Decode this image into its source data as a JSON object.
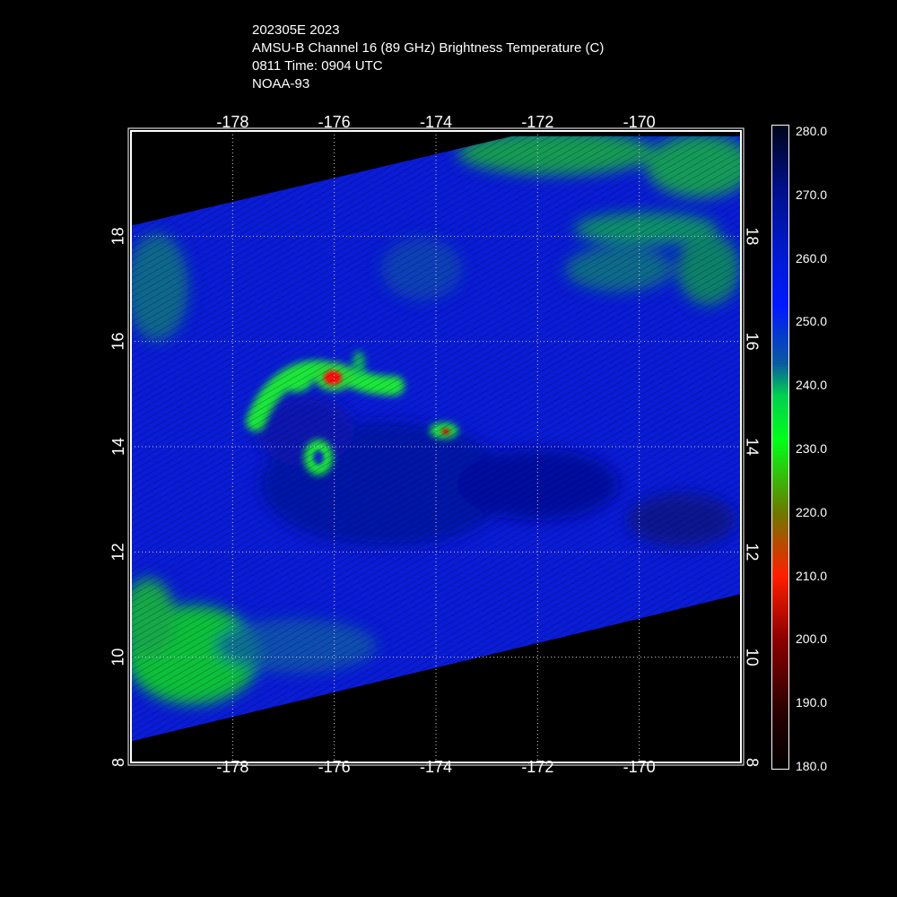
{
  "header": {
    "line1": "202305E 2023",
    "line2": "AMSU-B Channel 16 (89 GHz) Brightness Temperature (C)",
    "line3": "0811 Time: 0904 UTC",
    "line4": "NOAA-93"
  },
  "map": {
    "lon_range": [
      -180,
      -168
    ],
    "lat_range": [
      8,
      20
    ],
    "lon_ticks": [
      "-178",
      "-176",
      "-174",
      "-172",
      "-170"
    ],
    "lat_ticks": [
      "8",
      "10",
      "12",
      "14",
      "16",
      "18"
    ],
    "grid": true,
    "swath_corners_lonlat": [
      [
        -180,
        18.2
      ],
      [
        -172.5,
        19.9
      ],
      [
        -168.0,
        19.9
      ],
      [
        -168.0,
        11.2
      ],
      [
        -180,
        8.4
      ]
    ]
  },
  "colorbar": {
    "labels": [
      "280.0",
      "270.0",
      "260.0",
      "250.0",
      "240.0",
      "230.0",
      "220.0",
      "210.0",
      "200.0",
      "190.0",
      "180.0"
    ]
  },
  "colors": {
    "background": "#000000",
    "field_base": "#0a1cd6",
    "cold_green": "#1fe63a",
    "cold_red": "#ff1010",
    "grid": "#cccccc"
  }
}
